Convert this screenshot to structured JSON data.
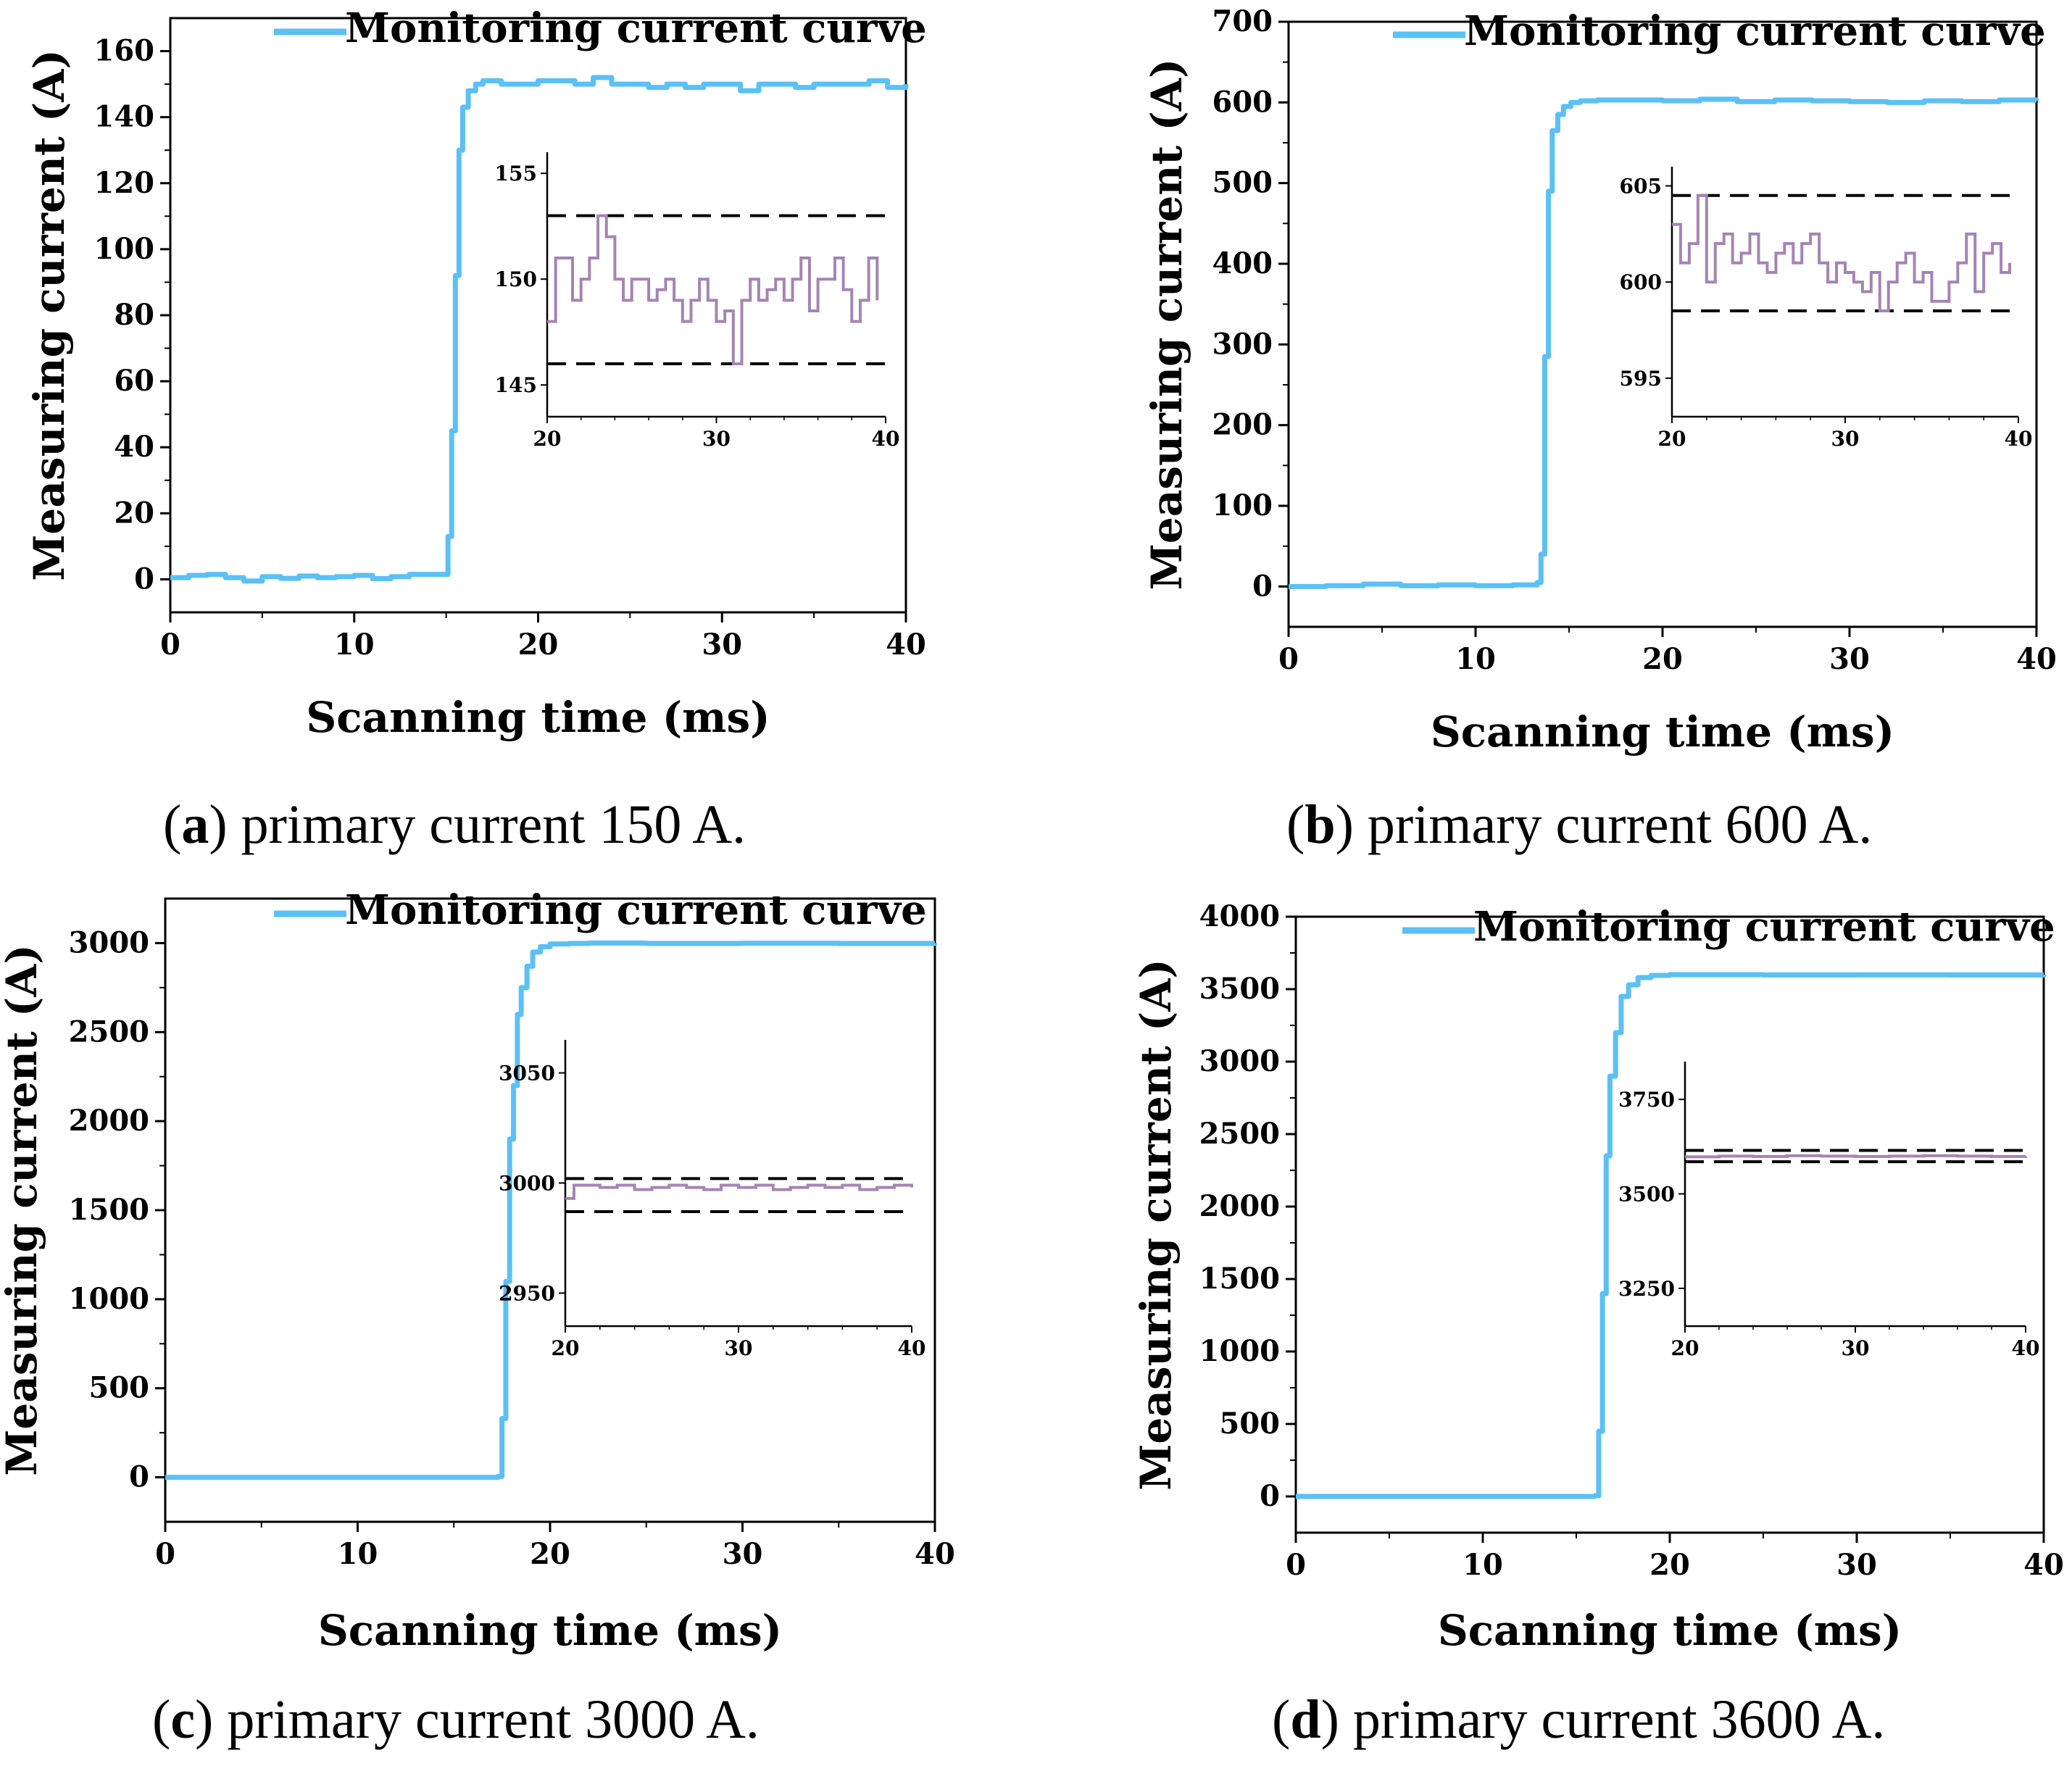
{
  "colors": {
    "main_series": "#5BC0F5",
    "inset_series": "#A484B4",
    "bounds": "#000000"
  },
  "chart_data": [
    {
      "type": "line",
      "panel": "a",
      "caption_label": "a",
      "caption_text": "primary current 150 A.",
      "xlabel": "Scanning time (ms)",
      "ylabel": "Measuring current (A)",
      "xlim": [
        0,
        40
      ],
      "ylim": [
        -10,
        170
      ],
      "xticks": [
        0,
        10,
        20,
        30,
        40
      ],
      "yticks": [
        0,
        20,
        40,
        60,
        80,
        100,
        120,
        140,
        160
      ],
      "legend": {
        "label": "Monitoring current curve",
        "position": "top-right"
      },
      "series": [
        {
          "name": "Monitoring current curve",
          "x": [
            0,
            1,
            2,
            3,
            4,
            5,
            6,
            7,
            8,
            9,
            10,
            11,
            12,
            13,
            14,
            14.9,
            15.1,
            15.3,
            15.5,
            15.7,
            15.9,
            16.2,
            16.6,
            17,
            18,
            19,
            20,
            21,
            22,
            23,
            24,
            25,
            26,
            27,
            28,
            29,
            30,
            31,
            32,
            33,
            34,
            35,
            36,
            37,
            38,
            39,
            40
          ],
          "y": [
            0.5,
            1.2,
            1.5,
            0.5,
            -0.5,
            0.8,
            0.3,
            1,
            0.5,
            0.8,
            1.2,
            0.2,
            0.8,
            1.5,
            1.5,
            1.5,
            13,
            45,
            92,
            130,
            143,
            148,
            150,
            151,
            150,
            150,
            151,
            151,
            150,
            152,
            150,
            150,
            149,
            150,
            149,
            150,
            150,
            148,
            150,
            150,
            149,
            150,
            150,
            150,
            151,
            149,
            150
          ]
        }
      ],
      "inset": {
        "xlim": [
          20,
          40
        ],
        "ylim": [
          143.5,
          156
        ],
        "xticks": [
          20,
          30,
          40
        ],
        "yticks": [
          145,
          150,
          155
        ],
        "bounds": [
          146,
          153
        ],
        "series": {
          "x": [
            20,
            20.5,
            21,
            21.5,
            22,
            22.5,
            23,
            23.5,
            24,
            24.5,
            25,
            25.5,
            26,
            26.5,
            27,
            27.5,
            28,
            28.5,
            29,
            29.5,
            30,
            30.5,
            31,
            31.5,
            32,
            32.5,
            33,
            33.5,
            34,
            34.5,
            35,
            35.5,
            36,
            36.5,
            37,
            37.5,
            38,
            38.5,
            39,
            39.5
          ],
          "y": [
            148,
            151,
            151,
            149,
            150,
            151,
            153,
            152,
            150,
            149,
            150,
            150,
            149,
            149.5,
            150,
            149,
            148,
            149,
            150,
            149,
            148,
            148.5,
            146,
            149,
            150,
            149,
            149.5,
            150,
            149,
            150,
            151,
            148.5,
            150,
            150,
            151,
            149.5,
            148,
            149,
            151,
            149
          ]
        }
      }
    },
    {
      "type": "line",
      "panel": "b",
      "caption_label": "b",
      "caption_text": "primary current 600 A.",
      "xlabel": "Scanning time (ms)",
      "ylabel": "Measuring current (A)",
      "xlim": [
        0,
        40
      ],
      "ylim": [
        -50,
        700
      ],
      "xticks": [
        0,
        10,
        20,
        30,
        40
      ],
      "yticks": [
        0,
        100,
        200,
        300,
        400,
        500,
        600,
        700
      ],
      "legend": {
        "label": "Monitoring current curve",
        "position": "top-right"
      },
      "series": [
        {
          "name": "Monitoring current curve",
          "x": [
            0,
            2,
            4,
            6,
            8,
            10,
            12,
            13.3,
            13.5,
            13.7,
            13.9,
            14.1,
            14.4,
            14.7,
            15.1,
            15.6,
            16.5,
            18,
            20,
            22,
            24,
            26,
            28,
            30,
            32,
            34,
            36,
            38,
            40
          ],
          "y": [
            0,
            1,
            3,
            1,
            2,
            1,
            2,
            5,
            40,
            285,
            490,
            565,
            585,
            595,
            600,
            602,
            603,
            603,
            602,
            604,
            601,
            603,
            602,
            601,
            600,
            602,
            601,
            603,
            602
          ]
        }
      ],
      "inset": {
        "xlim": [
          20,
          40
        ],
        "ylim": [
          593,
          606
        ],
        "xticks": [
          20,
          30,
          40
        ],
        "yticks": [
          595,
          600,
          605
        ],
        "bounds": [
          598.5,
          604.5
        ],
        "series": {
          "x": [
            20,
            20.5,
            21,
            21.5,
            22,
            22.5,
            23,
            23.5,
            24,
            24.5,
            25,
            25.5,
            26,
            26.5,
            27,
            27.5,
            28,
            28.5,
            29,
            29.5,
            30,
            30.5,
            31,
            31.5,
            32,
            32.5,
            33,
            33.5,
            34,
            34.5,
            35,
            35.5,
            36,
            36.5,
            37,
            37.5,
            38,
            38.5,
            39,
            39.5
          ],
          "y": [
            603,
            601,
            602,
            604.5,
            600,
            602,
            602.5,
            601,
            601.5,
            602.5,
            601,
            600.5,
            601.5,
            602,
            601,
            602,
            602.5,
            601,
            600,
            601,
            600.5,
            600,
            599.5,
            600.5,
            598.5,
            600,
            601,
            601.5,
            600,
            600.5,
            599,
            599,
            600,
            601,
            602.5,
            599.5,
            601.5,
            602,
            600.5,
            601
          ]
        }
      }
    },
    {
      "type": "line",
      "panel": "c",
      "caption_label": "c",
      "caption_text": "primary current 3000 A.",
      "xlabel": "Scanning time (ms)",
      "ylabel": "Measuring current (A)",
      "xlim": [
        0,
        40
      ],
      "ylim": [
        -250,
        3250
      ],
      "xticks": [
        0,
        10,
        20,
        30,
        40
      ],
      "yticks": [
        0,
        500,
        1000,
        1500,
        2000,
        2500,
        3000
      ],
      "legend": {
        "label": "Monitoring current curve",
        "position": "top-right"
      },
      "series": [
        {
          "name": "Monitoring current curve",
          "x": [
            0,
            5,
            10,
            15,
            17.3,
            17.5,
            17.7,
            17.9,
            18.1,
            18.3,
            18.5,
            18.8,
            19.1,
            19.5,
            20,
            21,
            22,
            25,
            30,
            35,
            40
          ],
          "y": [
            0,
            0,
            0,
            0,
            5,
            330,
            1100,
            1900,
            2200,
            2600,
            2750,
            2870,
            2950,
            2980,
            2995,
            2998,
            3000,
            2998,
            2999,
            2998,
            2999
          ]
        }
      ],
      "inset": {
        "xlim": [
          20,
          40
        ],
        "ylim": [
          2935,
          3065
        ],
        "xticks": [
          20,
          30,
          40
        ],
        "yticks": [
          2950,
          3000,
          3050
        ],
        "bounds": [
          2987,
          3002
        ],
        "series": {
          "x": [
            20,
            20.5,
            21,
            22,
            23,
            24,
            25,
            26,
            27,
            28,
            29,
            30,
            31,
            32,
            33,
            34,
            35,
            36,
            37,
            38,
            39,
            40
          ],
          "y": [
            2993,
            2999,
            2999,
            2998,
            2999,
            2997,
            2998,
            2999,
            2998,
            2997,
            2999,
            2998,
            2999,
            2997,
            2998,
            2999,
            2998,
            2999,
            2997,
            2998,
            2999,
            2998
          ]
        }
      }
    },
    {
      "type": "line",
      "panel": "d",
      "caption_label": "d",
      "caption_text": "primary current 3600 A.",
      "xlabel": "Scanning time (ms)",
      "ylabel": "Measuring current (A)",
      "xlim": [
        0,
        40
      ],
      "ylim": [
        -250,
        4000
      ],
      "xticks": [
        0,
        10,
        20,
        30,
        40
      ],
      "yticks": [
        0,
        500,
        1000,
        1500,
        2000,
        2500,
        3000,
        3500,
        4000
      ],
      "legend": {
        "label": "Monitoring current curve",
        "position": "top-right"
      },
      "series": [
        {
          "name": "Monitoring current curve",
          "x": [
            0,
            5,
            10,
            15,
            16,
            16.2,
            16.4,
            16.6,
            16.8,
            17.1,
            17.4,
            17.8,
            18.3,
            19,
            20,
            25,
            30,
            35,
            40
          ],
          "y": [
            0,
            0,
            0,
            0,
            5,
            450,
            1400,
            2350,
            2900,
            3200,
            3450,
            3530,
            3580,
            3595,
            3600,
            3598,
            3599,
            3598,
            3599
          ]
        }
      ],
      "inset": {
        "xlim": [
          20,
          40
        ],
        "ylim": [
          3150,
          3850
        ],
        "xticks": [
          20,
          30,
          40
        ],
        "yticks": [
          3250,
          3500,
          3750
        ],
        "bounds": [
          3585,
          3615
        ],
        "series": {
          "x": [
            20,
            22,
            24,
            26,
            28,
            30,
            32,
            34,
            36,
            38,
            40
          ],
          "y": [
            3598,
            3600,
            3599,
            3601,
            3600,
            3599,
            3600,
            3601,
            3600,
            3599,
            3600
          ]
        }
      }
    }
  ]
}
